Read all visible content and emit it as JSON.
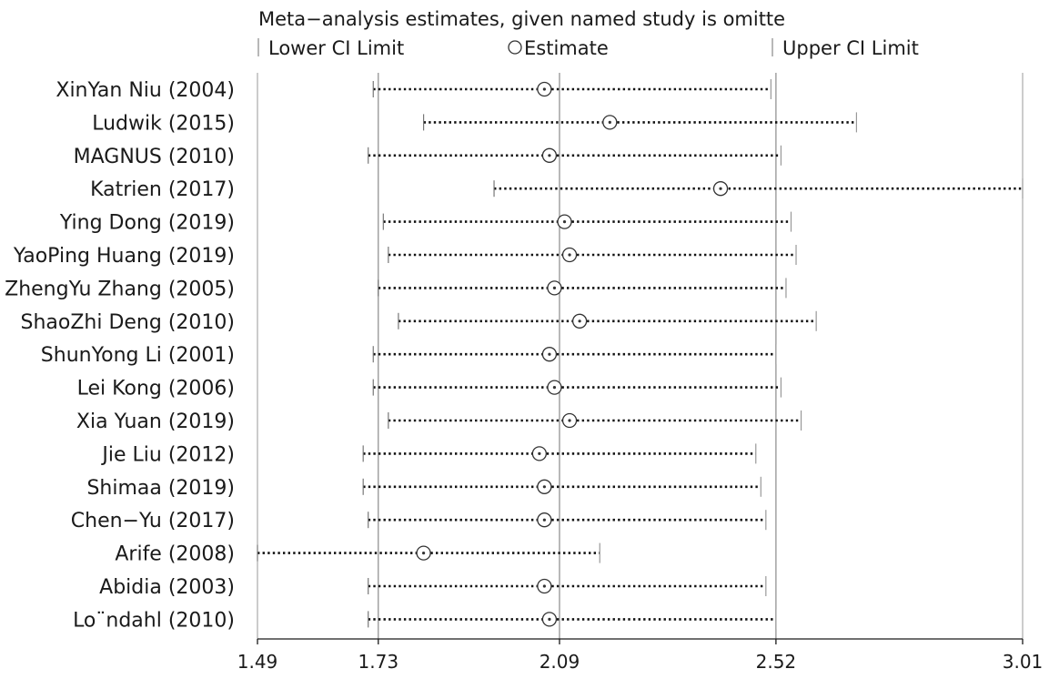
{
  "chart_data": {
    "type": "forest",
    "title": "Meta−analysis estimates, given named study is omitte",
    "legend": {
      "lower": "Lower CI Limit",
      "estimate": "Estimate",
      "upper": "Upper CI Limit"
    },
    "x_ticks": [
      "1.49",
      "1.73",
      "2.09",
      "2.52",
      "3.01"
    ],
    "xlim": [
      1.49,
      3.01
    ],
    "reference_lines": [
      1.73,
      2.09,
      2.52
    ],
    "studies": [
      {
        "label": "XinYan Niu (2004)",
        "lower": 1.72,
        "estimate": 2.06,
        "upper": 2.51
      },
      {
        "label": "Ludwik  (2015)",
        "lower": 1.82,
        "estimate": 2.19,
        "upper": 2.68
      },
      {
        "label": "MAGNUS  (2010)",
        "lower": 1.71,
        "estimate": 2.07,
        "upper": 2.53
      },
      {
        "label": "Katrien  (2017)",
        "lower": 1.96,
        "estimate": 2.41,
        "upper": 3.01
      },
      {
        "label": "Ying Dong (2019)",
        "lower": 1.74,
        "estimate": 2.1,
        "upper": 2.55
      },
      {
        "label": "YaoPing Huang (2019)",
        "lower": 1.75,
        "estimate": 2.11,
        "upper": 2.56
      },
      {
        "label": "ZhengYu Zhang (2005)",
        "lower": 1.73,
        "estimate": 2.08,
        "upper": 2.54
      },
      {
        "label": "ShaoZhi Deng (2010)",
        "lower": 1.77,
        "estimate": 2.13,
        "upper": 2.6
      },
      {
        "label": "ShunYong Li (2001)",
        "lower": 1.72,
        "estimate": 2.07,
        "upper": 2.52
      },
      {
        "label": "Lei Kong (2006)",
        "lower": 1.72,
        "estimate": 2.08,
        "upper": 2.53
      },
      {
        "label": "Xia Yuan (2019)",
        "lower": 1.75,
        "estimate": 2.11,
        "upper": 2.57
      },
      {
        "label": "Jie Liu (2012)",
        "lower": 1.7,
        "estimate": 2.05,
        "upper": 2.48
      },
      {
        "label": "Shimaa (2019)",
        "lower": 1.7,
        "estimate": 2.06,
        "upper": 2.49
      },
      {
        "label": "Chen−Yu  (2017)",
        "lower": 1.71,
        "estimate": 2.06,
        "upper": 2.5
      },
      {
        "label": "Arife  (2008)",
        "lower": 1.49,
        "estimate": 1.82,
        "upper": 2.17
      },
      {
        "label": "Abidia (2003)",
        "lower": 1.71,
        "estimate": 2.06,
        "upper": 2.5
      },
      {
        "label": "Lo¨ndahl (2010)",
        "lower": 1.71,
        "estimate": 2.07,
        "upper": 2.52
      }
    ]
  }
}
